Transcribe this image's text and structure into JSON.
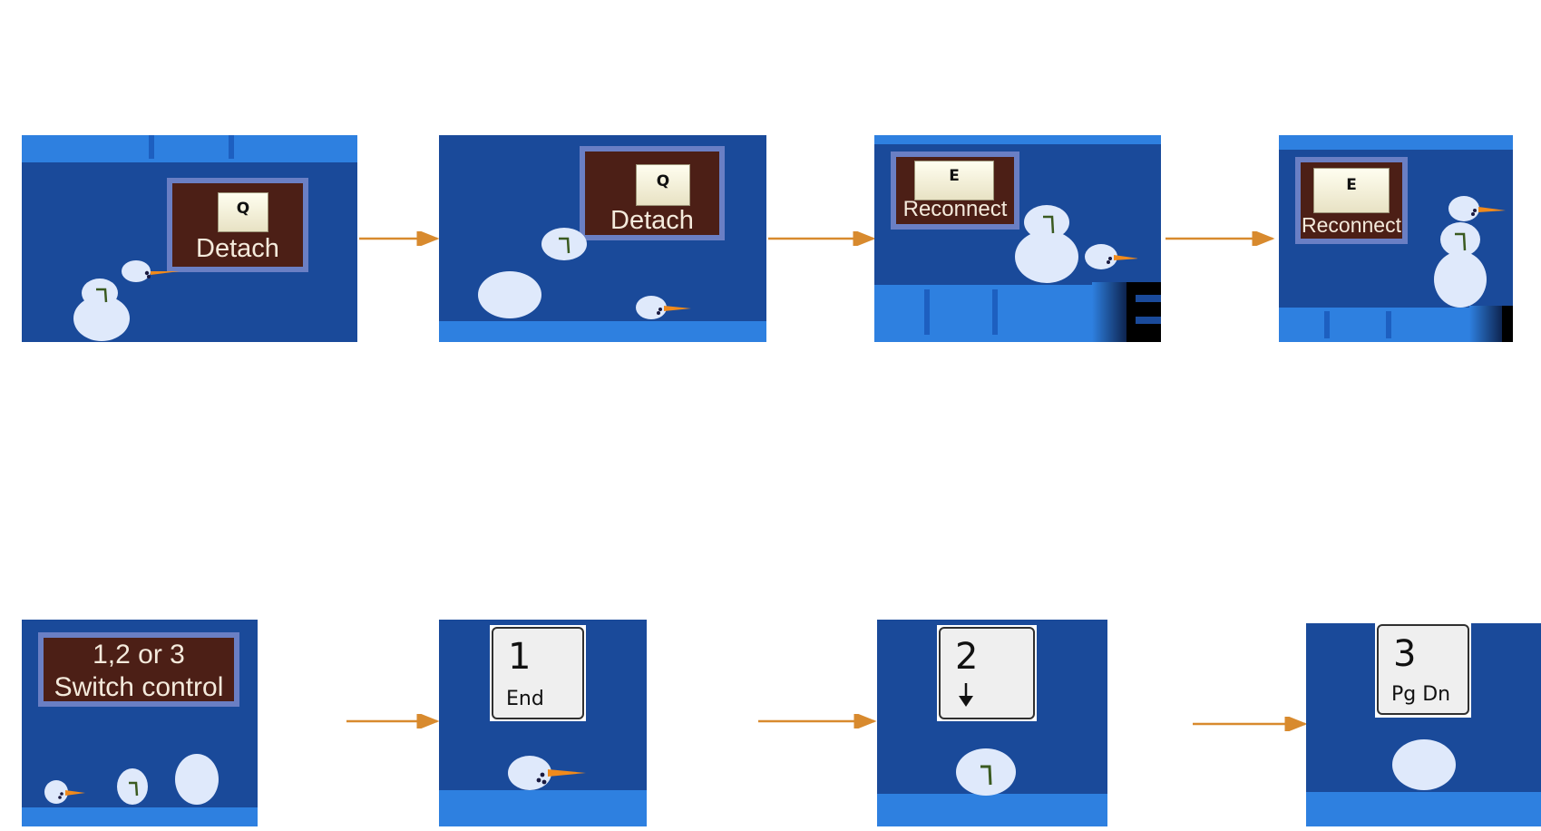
{
  "row1": {
    "panels": [
      {
        "sign_key": "Q",
        "sign_label": "Detach"
      },
      {
        "sign_key": "Q",
        "sign_label": "Detach"
      },
      {
        "sign_key": "E",
        "sign_label": "Reconnect"
      },
      {
        "sign_key": "E",
        "sign_label": "Reconnect"
      }
    ]
  },
  "row2": {
    "sign": {
      "line1": "1,2 or 3",
      "line2": "Switch control"
    },
    "keys": [
      {
        "top": "1",
        "bottom": "End",
        "icon": "none"
      },
      {
        "top": "2",
        "bottom": "",
        "icon": "down-arrow-icon"
      },
      {
        "top": "3",
        "bottom": "Pg Dn",
        "icon": "none"
      }
    ]
  },
  "colors": {
    "background": "#1a4a9a",
    "floor": "#2e80e0",
    "sign": "#4c1f16",
    "arrow": "#d88a2e"
  }
}
